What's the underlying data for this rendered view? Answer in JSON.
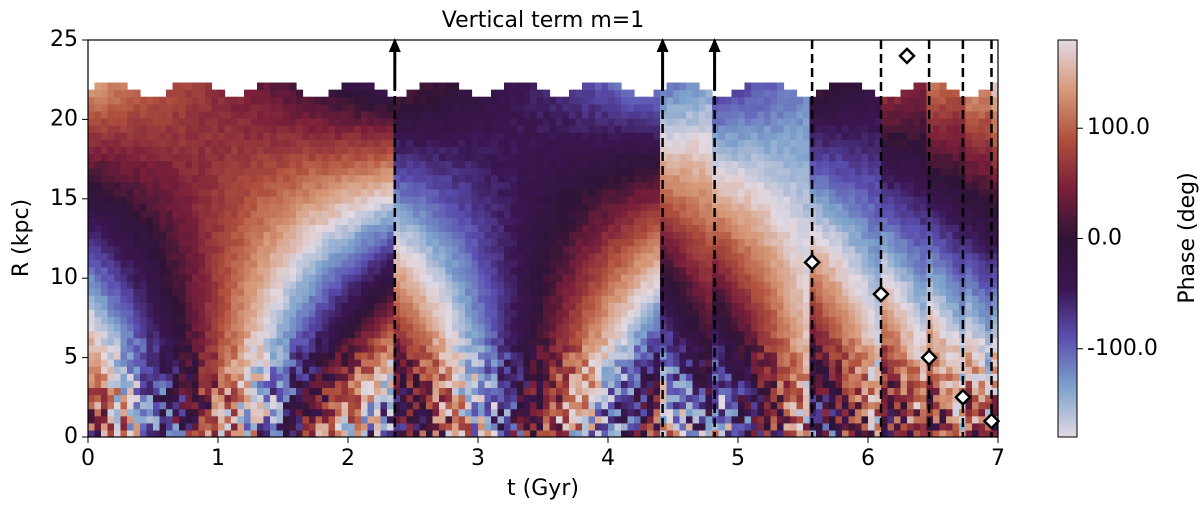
{
  "chart_data": {
    "type": "heatmap",
    "title": "Vertical term m=1",
    "xlabel": "t (Gyr)",
    "ylabel": "R (kpc)",
    "xlim": [
      0,
      7
    ],
    "ylim": [
      0,
      25
    ],
    "xticks": [
      0,
      1,
      2,
      3,
      4,
      5,
      6,
      7
    ],
    "yticks": [
      0,
      5,
      10,
      15,
      20,
      25
    ],
    "colorbar": {
      "label": "Phase (deg)",
      "lim": [
        -180,
        180
      ],
      "ticks": [
        {
          "value": 100,
          "label": "100.0"
        },
        {
          "value": 0,
          "label": "0.0"
        },
        {
          "value": -100,
          "label": "-100.0"
        }
      ],
      "colormap": [
        "#e2d9e2",
        "#7ea2cc",
        "#5a4fb0",
        "#3a1651",
        "#2f1436",
        "#7a1f3a",
        "#b0503d",
        "#d79a7a",
        "#e2d9e2"
      ]
    },
    "vlines": {
      "x": [
        2.36,
        4.42,
        4.82,
        5.57,
        6.1,
        6.47,
        6.73,
        6.95
      ],
      "color": "#000000"
    },
    "arrows": {
      "x": [
        2.36,
        4.42,
        4.82
      ],
      "y": [
        25,
        25,
        25
      ]
    },
    "diamonds": {
      "x": [
        5.57,
        6.1,
        6.3,
        6.47,
        6.73,
        6.95
      ],
      "y": [
        11,
        9,
        24,
        5,
        2.5,
        1
      ]
    }
  }
}
